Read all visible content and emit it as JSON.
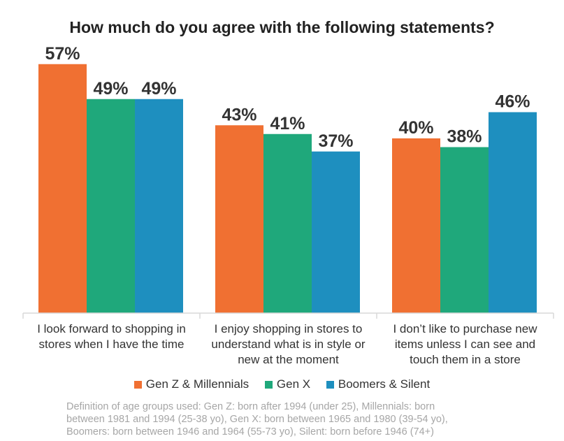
{
  "chart_data": {
    "type": "bar",
    "title": "How much do you agree with the following statements?",
    "categories": [
      [
        "I look forward to shopping in",
        "stores when I have the time"
      ],
      [
        "I enjoy shopping in stores to",
        "understand what is in style or",
        "new at the moment"
      ],
      [
        "I don’t like to purchase new",
        "items unless I can see and",
        "touch them in a store"
      ]
    ],
    "series": [
      {
        "name": "Gen Z & Millennials",
        "color": "#f07032",
        "values": [
          57,
          43,
          40
        ]
      },
      {
        "name": "Gen X",
        "color": "#1fa87b",
        "values": [
          49,
          41,
          38
        ]
      },
      {
        "name": "Boomers & Silent",
        "color": "#1e8fbf",
        "values": [
          49,
          37,
          46
        ]
      }
    ],
    "value_suffix": "%",
    "ylim": [
      0,
      60
    ],
    "grid": false,
    "legend_position": "bottom"
  },
  "footnote": [
    "Definition of age groups used: Gen Z: born after 1994 (under 25), Millennials: born",
    "between 1981 and 1994 (25-38 yo), Gen X: born between 1965 and 1980 (39-54 yo),",
    "Boomers: born between 1946 and 1964 (55-73 yo), Silent: born before 1946 (74+)"
  ]
}
